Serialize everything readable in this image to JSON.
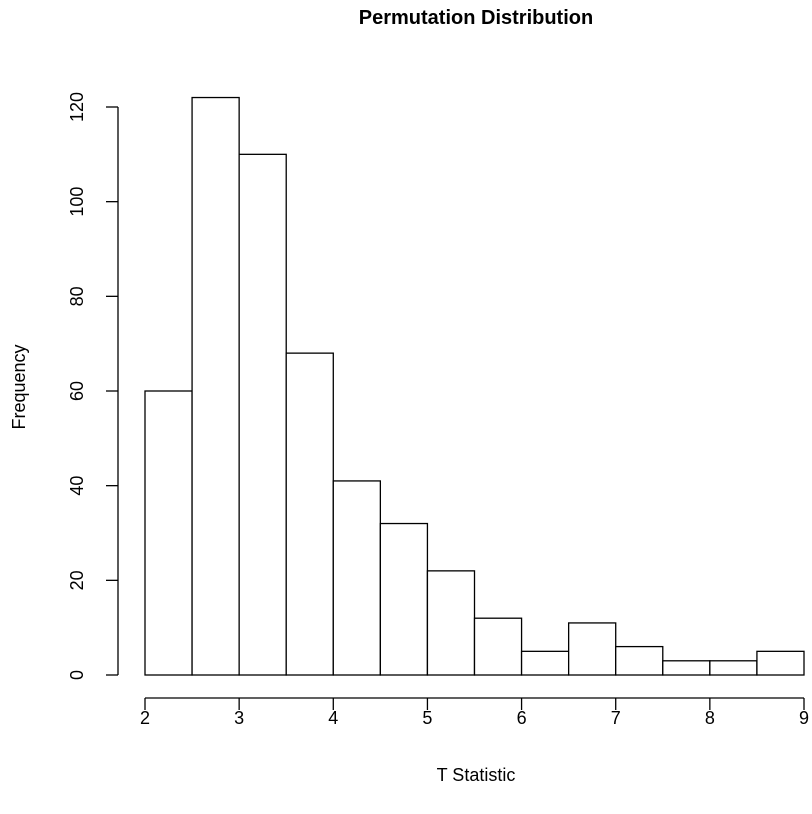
{
  "chart_data": {
    "type": "bar",
    "title": "Permutation Distribution",
    "xlabel": "T Statistic",
    "ylabel": "Frequency",
    "bins": [
      {
        "x0": 2.0,
        "x1": 2.5,
        "count": 60
      },
      {
        "x0": 2.5,
        "x1": 3.0,
        "count": 122
      },
      {
        "x0": 3.0,
        "x1": 3.5,
        "count": 110
      },
      {
        "x0": 3.5,
        "x1": 4.0,
        "count": 68
      },
      {
        "x0": 4.0,
        "x1": 4.5,
        "count": 41
      },
      {
        "x0": 4.5,
        "x1": 5.0,
        "count": 32
      },
      {
        "x0": 5.0,
        "x1": 5.5,
        "count": 22
      },
      {
        "x0": 5.5,
        "x1": 6.0,
        "count": 12
      },
      {
        "x0": 6.0,
        "x1": 6.5,
        "count": 5
      },
      {
        "x0": 6.5,
        "x1": 7.0,
        "count": 11
      },
      {
        "x0": 7.0,
        "x1": 7.5,
        "count": 6
      },
      {
        "x0": 7.5,
        "x1": 8.0,
        "count": 3
      },
      {
        "x0": 8.0,
        "x1": 8.5,
        "count": 3
      },
      {
        "x0": 8.5,
        "x1": 9.0,
        "count": 5
      }
    ],
    "xlim": [
      2,
      9
    ],
    "ylim": [
      0,
      120
    ],
    "xticks": [
      "2",
      "3",
      "4",
      "5",
      "6",
      "7",
      "8",
      "9"
    ],
    "yticks": [
      "0",
      "20",
      "40",
      "60",
      "80",
      "100",
      "120"
    ],
    "bar_fill": "#ffffff",
    "bar_stroke": "#000000",
    "grid": false,
    "legend": "none"
  }
}
